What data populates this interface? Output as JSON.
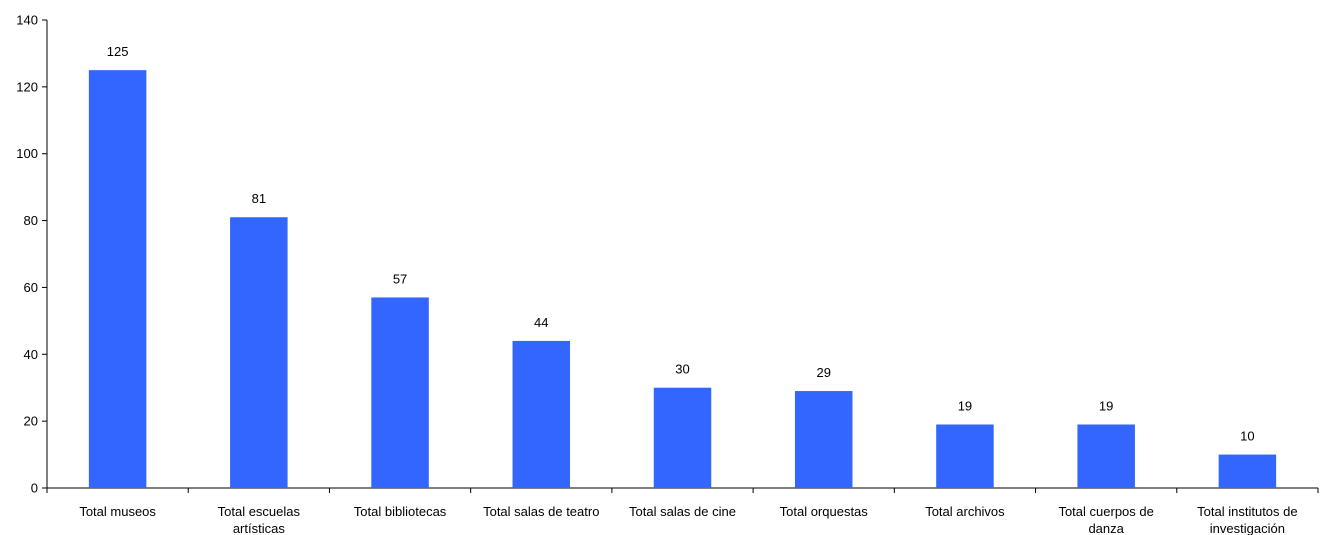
{
  "colors": {
    "bar": "#3366ff",
    "axis": "#000000",
    "background": "#ffffff"
  },
  "chart_data": {
    "type": "bar",
    "title": "",
    "xlabel": "",
    "ylabel": "",
    "ylim": [
      0,
      140
    ],
    "yticks": [
      0,
      20,
      40,
      60,
      80,
      100,
      120,
      140
    ],
    "grid": false,
    "legend": "none",
    "categories": [
      "Total museos",
      "Total escuelas artísticas",
      "Total bibliotecas",
      "Total salas de teatro",
      "Total salas de cine",
      "Total orquestas",
      "Total archivos",
      "Total cuerpos de danza",
      "Total institutos de investigación"
    ],
    "values": [
      125,
      81,
      57,
      44,
      30,
      29,
      19,
      19,
      10
    ],
    "data_labels": [
      "125",
      "81",
      "57",
      "44",
      "30",
      "29",
      "19",
      "19",
      "10"
    ]
  }
}
